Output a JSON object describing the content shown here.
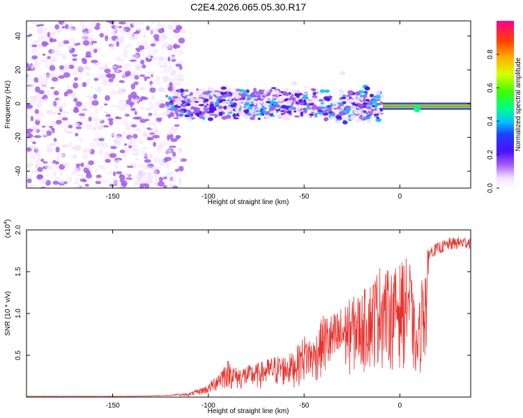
{
  "title": "C2E4.2026.065.05.30.R17",
  "chart_data": [
    {
      "type": "heatmap",
      "title": "C2E4.2026.065.05.30.R17",
      "xlabel": "Height of straight line (km)",
      "ylabel": "Frequency (Hz)",
      "xlim": [
        -195,
        37
      ],
      "ylim": [
        -50,
        49
      ],
      "xticks": [
        -150,
        -100,
        -50,
        0
      ],
      "yticks": [
        -40,
        -20,
        0,
        20,
        40
      ],
      "colorbar": {
        "label": "Normalized spectral amplitude",
        "range": [
          0.0,
          1.0
        ],
        "ticks": [
          0.0,
          0.2,
          0.4,
          0.6,
          0.8
        ]
      },
      "description_regions": [
        {
          "x_range": [
            -195,
            -115
          ],
          "freq_range": [
            -50,
            49
          ],
          "amplitude": "low, scattered"
        },
        {
          "x_range": [
            -120,
            -10
          ],
          "freq_range": [
            -10,
            10
          ],
          "amplitude": "medium band"
        },
        {
          "x_range": [
            -10,
            37
          ],
          "freq_center": -2,
          "amplitude": "high, narrow line"
        }
      ]
    },
    {
      "type": "line",
      "xlabel": "Height of straight line (km)",
      "ylabel": "SNR (10 * v/v)",
      "yscale_label": "(x10^4)",
      "xlim": [
        -195,
        37
      ],
      "ylim": [
        0,
        2.0
      ],
      "xticks": [
        -150,
        -100,
        -50,
        0
      ],
      "yticks": [
        0.5,
        1.0,
        1.5,
        2.0
      ],
      "series": [
        {
          "name": "SNR",
          "color": "#e8312c",
          "envelope_x": [
            -195,
            -140,
            -120,
            -110,
            -100,
            -95,
            -90,
            -85,
            -80,
            -75,
            -70,
            -65,
            -60,
            -55,
            -50,
            -45,
            -40,
            -35,
            -30,
            -25,
            -20,
            -15,
            -10,
            -5,
            0,
            5,
            9,
            12,
            15,
            20,
            25,
            30,
            37
          ],
          "envelope_y": [
            0.01,
            0.01,
            0.02,
            0.05,
            0.15,
            0.3,
            0.45,
            0.35,
            0.38,
            0.4,
            0.45,
            0.5,
            0.5,
            0.55,
            0.75,
            0.7,
            1.0,
            1.0,
            1.1,
            1.2,
            1.25,
            1.4,
            1.6,
            1.5,
            1.6,
            1.7,
            0.8,
            1.6,
            1.8,
            1.85,
            1.9,
            1.92,
            1.93
          ]
        }
      ]
    }
  ]
}
